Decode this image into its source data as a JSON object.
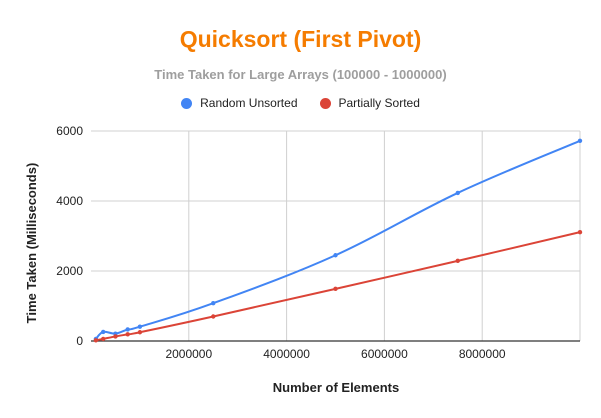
{
  "chart_data": {
    "type": "line",
    "title": "Quicksort (First Pivot)",
    "subtitle": "Time Taken for Large Arrays (100000 - 1000000)",
    "xlabel": "Number of Elements",
    "ylabel": "Time Taken (Milliseconds)",
    "xlim": [
      0,
      10000000
    ],
    "ylim": [
      0,
      6000
    ],
    "x_ticks": [
      2000000,
      4000000,
      6000000,
      8000000
    ],
    "y_ticks": [
      0,
      2000,
      4000,
      6000
    ],
    "grid": true,
    "legend_position": "top",
    "series": [
      {
        "name": "Random Unsorted",
        "color": "#4285f4",
        "x": [
          100000,
          250000,
          500000,
          750000,
          1000000,
          2500000,
          5000000,
          7500000,
          10000000
        ],
        "y": [
          60,
          260,
          210,
          330,
          410,
          1080,
          2450,
          4230,
          5720
        ]
      },
      {
        "name": "Partially Sorted",
        "color": "#db4437",
        "x": [
          100000,
          250000,
          500000,
          750000,
          1000000,
          2500000,
          5000000,
          7500000,
          10000000
        ],
        "y": [
          20,
          60,
          130,
          190,
          250,
          700,
          1490,
          2290,
          3110
        ]
      }
    ]
  }
}
